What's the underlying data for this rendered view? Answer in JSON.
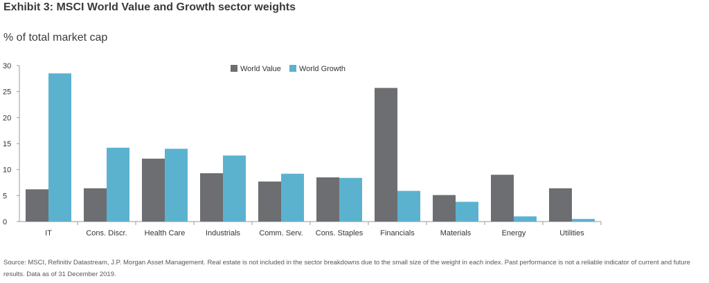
{
  "header": {
    "title": "Exhibit 3: MSCI World Value and Growth sector weights",
    "subtitle": "% of total market cap"
  },
  "footer": {
    "source": "Source: MSCI, Refinitiv Datastream, J.P. Morgan Asset Management. Real estate is not included in the sector breakdowns due to the small size of the weight in each index. Past performance is not a reliable indicator of current and future results. Data as of 31 December 2019."
  },
  "chart_data": {
    "type": "bar",
    "title": "Exhibit 3: MSCI World Value and Growth sector weights",
    "subtitle": "% of total market cap",
    "xlabel": "",
    "ylabel": "",
    "ylim": [
      0,
      30
    ],
    "yticks": [
      0,
      5,
      10,
      15,
      20,
      25,
      30
    ],
    "grid": false,
    "legend_position": "top-center",
    "categories": [
      "IT",
      "Cons. Discr.",
      "Health Care",
      "Industrials",
      "Comm. Serv.",
      "Cons. Staples",
      "Financials",
      "Materials",
      "Energy",
      "Utilities"
    ],
    "series": [
      {
        "name": "World Value",
        "color": "#6d6e71",
        "values": [
          6.2,
          6.4,
          12.1,
          9.3,
          7.7,
          8.5,
          25.7,
          5.1,
          9.0,
          6.4
        ]
      },
      {
        "name": "World Growth",
        "color": "#5bb2cf",
        "values": [
          28.5,
          14.2,
          14.0,
          12.7,
          9.2,
          8.4,
          5.9,
          3.8,
          1.0,
          0.5
        ]
      }
    ]
  }
}
